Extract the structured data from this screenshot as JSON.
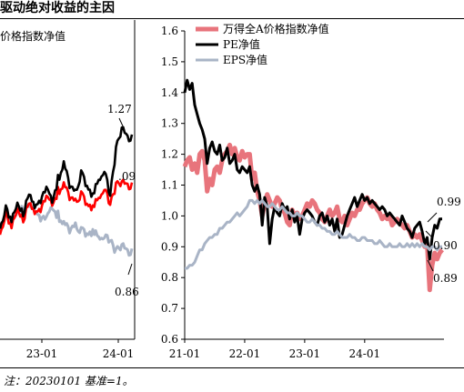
{
  "title": "驱动绝对收益的主因",
  "note": "注：20230101 基准=1。",
  "colors": {
    "total": "#e8747c",
    "pe": "#000000",
    "eps": "#a9b4c6",
    "red": "#ff0000"
  },
  "chart_data": [
    {
      "type": "line",
      "legend": [
        "价格指数净值"
      ],
      "x_tick_labels": [
        "23-01",
        "24-01"
      ],
      "annotations": [
        "1.27",
        ".09",
        "0.86"
      ],
      "series": [
        {
          "name": "",
          "color": "#000000",
          "values": [
            0.95,
            1.0,
            0.97,
            1.02,
            0.98,
            1.05,
            1.0,
            1.03,
            1.08,
            1.02,
            1.1,
            1.15,
            1.08,
            1.05,
            1.12,
            1.08,
            1.04,
            1.1,
            1.12,
            1.05,
            1.2,
            1.27,
            1.24
          ]
        },
        {
          "name": "",
          "color": "#ff0000",
          "values": [
            0.93,
            0.98,
            0.95,
            1.0,
            0.96,
            1.02,
            0.98,
            1.0,
            1.05,
            1.01,
            1.06,
            1.08,
            1.04,
            1.02,
            1.05,
            1.02,
            1.0,
            1.04,
            1.06,
            1.02,
            1.08,
            1.09,
            1.08
          ]
        },
        {
          "name": "",
          "color": "#a9b4c6",
          "values": [
            0.96,
            0.98,
            0.97,
            0.99,
            1.0,
            1.01,
            0.99,
            0.97,
            0.98,
            1.0,
            0.98,
            0.95,
            0.93,
            0.94,
            0.93,
            0.92,
            0.92,
            0.91,
            0.9,
            0.9,
            0.86,
            0.88,
            0.86
          ]
        }
      ]
    },
    {
      "type": "line",
      "ylim": [
        0.6,
        1.6
      ],
      "y_ticks": [
        "0.6",
        "0.7",
        "0.8",
        "0.9",
        "1.0",
        "1.1",
        "1.2",
        "1.3",
        "1.4",
        "1.5",
        "1.6"
      ],
      "x_tick_labels": [
        "21-01",
        "22-01",
        "23-01",
        "24-01"
      ],
      "legend_position": "top-right",
      "annotations": [
        "0.99",
        "0.90",
        "0.89"
      ],
      "series": [
        {
          "name": "万得全A价格指数净值",
          "color": "#e8747c",
          "x": [
            0,
            0.5,
            1,
            1.5,
            2,
            2.5,
            3,
            3.5,
            4,
            4.5,
            5,
            5.5,
            6,
            6.5,
            7,
            7.5,
            8,
            8.5,
            9,
            9.5,
            10,
            10.5,
            11,
            11.5,
            12,
            12.5,
            13,
            13.5,
            14,
            14.5,
            15,
            15.5,
            16,
            16.5,
            17,
            17.5,
            18,
            18.5,
            19,
            19.5,
            20,
            20.5,
            21,
            21.5,
            22,
            22.5,
            23,
            23.5,
            24,
            24.5,
            25,
            25.5,
            26,
            26.5,
            27,
            27.5,
            28,
            28.5,
            29,
            29.5,
            30,
            30.5,
            31,
            31.5,
            32,
            32.5,
            33,
            33.5,
            34,
            34.5,
            35,
            35.5,
            36,
            36.5,
            37,
            37.5,
            38,
            38.5,
            39,
            39.5,
            40,
            40.5,
            41,
            41.5,
            42,
            42.5,
            43,
            43.5,
            44,
            44.5,
            45,
            45.5,
            46,
            46.5,
            47,
            47.5,
            48,
            48.5,
            49,
            49.5,
            50,
            50.5,
            51,
            51.5
          ],
          "values": [
            1.16,
            1.18,
            1.19,
            1.15,
            1.17,
            1.14,
            1.2,
            1.21,
            1.18,
            1.08,
            1.12,
            1.1,
            1.15,
            1.16,
            1.14,
            1.18,
            1.2,
            1.21,
            1.23,
            1.2,
            1.22,
            1.19,
            1.18,
            1.21,
            1.19,
            1.2,
            1.2,
            1.12,
            1.14,
            1.08,
            1.05,
            1.0,
            1.04,
            1.07,
            1.05,
            1.03,
            1.04,
            1.06,
            1.05,
            1.02,
            1.01,
            0.98,
            0.97,
            1.02,
            1.0,
            1.01,
            0.99,
            1.0,
            1.02,
            1.04,
            1.03,
            1.05,
            1.04,
            1.02,
            1.01,
            0.99,
            0.98,
            1.0,
            1.02,
            1.0,
            1.01,
            1.03,
            0.99,
            0.98,
            1.0,
            0.97,
            0.99,
            1.01,
            1.0,
            1.02,
            1.02,
            1.04,
            1.05,
            1.06,
            1.04,
            1.03,
            1.04,
            1.02,
            1.01,
            0.99,
            1.0,
            0.99,
            1.0,
            0.97,
            0.98,
            0.99,
            0.98,
            0.97,
            0.96,
            0.97,
            0.95,
            0.93,
            0.94,
            0.93,
            0.94,
            0.92,
            0.9,
            0.91,
            0.76,
            0.84,
            0.88,
            0.86,
            0.88,
            0.89
          ]
        },
        {
          "name": "PE净值",
          "color": "#000000",
          "x": [
            0,
            0.5,
            1,
            1.5,
            2,
            2.5,
            3,
            3.5,
            4,
            4.5,
            5,
            5.5,
            6,
            6.5,
            7,
            7.5,
            8,
            8.5,
            9,
            9.5,
            10,
            10.5,
            11,
            11.5,
            12,
            12.5,
            13,
            13.5,
            14,
            14.5,
            15,
            15.5,
            16,
            16.5,
            17,
            17.5,
            18,
            18.5,
            19,
            19.5,
            20,
            20.5,
            21,
            21.5,
            22,
            22.5,
            23,
            23.5,
            24,
            24.5,
            25,
            25.5,
            26,
            26.5,
            27,
            27.5,
            28,
            28.5,
            29,
            29.5,
            30,
            30.5,
            31,
            31.5,
            32,
            32.5,
            33,
            33.5,
            34,
            34.5,
            35,
            35.5,
            36,
            36.5,
            37,
            37.5,
            38,
            38.5,
            39,
            39.5,
            40,
            40.5,
            41,
            41.5,
            42,
            42.5,
            43,
            43.5,
            44,
            44.5,
            45,
            45.5,
            46,
            46.5,
            47,
            47.5,
            48,
            48.5,
            49,
            49.5,
            50,
            50.5,
            51,
            51.5
          ],
          "values": [
            1.4,
            1.44,
            1.41,
            1.43,
            1.36,
            1.33,
            1.3,
            1.28,
            1.25,
            1.17,
            1.22,
            1.24,
            1.21,
            1.2,
            1.23,
            1.18,
            1.19,
            1.22,
            1.17,
            1.18,
            1.2,
            1.15,
            1.14,
            1.16,
            1.15,
            1.14,
            1.16,
            1.1,
            1.08,
            1.1,
            1.07,
            0.97,
            1.06,
            1.03,
            0.91,
            0.99,
            1.03,
            1.01,
            1.0,
            1.04,
            1.02,
            1.03,
            0.99,
            1.02,
            0.98,
            1.0,
            0.94,
            0.99,
            1.01,
            1.02,
            1.01,
            1.0,
            0.98,
            0.97,
            1.0,
            1.01,
            0.98,
            1.0,
            0.97,
            0.99,
            0.95,
            0.99,
            0.93,
            0.94,
            0.97,
            1.0,
            1.02,
            1.04,
            1.06,
            1.03,
            1.05,
            1.07,
            1.05,
            1.06,
            1.04,
            1.05,
            1.04,
            1.03,
            1.02,
            1.03,
            1.02,
            1.0,
            1.01,
            1.0,
            0.99,
            0.98,
            0.97,
            1.0,
            0.98,
            0.96,
            0.95,
            0.93,
            0.96,
            0.97,
            0.98,
            0.95,
            0.91,
            0.93,
            0.86,
            0.93,
            0.97,
            0.96,
            0.99,
            0.99
          ]
        },
        {
          "name": "EPS净值",
          "color": "#a9b4c6",
          "x": [
            0,
            0.5,
            1,
            1.5,
            2,
            2.5,
            3,
            3.5,
            4,
            4.5,
            5,
            5.5,
            6,
            6.5,
            7,
            7.5,
            8,
            8.5,
            9,
            9.5,
            10,
            10.5,
            11,
            11.5,
            12,
            12.5,
            13,
            13.5,
            14,
            14.5,
            15,
            15.5,
            16,
            16.5,
            17,
            17.5,
            18,
            18.5,
            19,
            19.5,
            20,
            20.5,
            21,
            21.5,
            22,
            22.5,
            23,
            23.5,
            24,
            24.5,
            25,
            25.5,
            26,
            26.5,
            27,
            27.5,
            28,
            28.5,
            29,
            29.5,
            30,
            30.5,
            31,
            31.5,
            32,
            32.5,
            33,
            33.5,
            34,
            34.5,
            35,
            35.5,
            36,
            36.5,
            37,
            37.5,
            38,
            38.5,
            39,
            39.5,
            40,
            40.5,
            41,
            41.5,
            42,
            42.5,
            43,
            43.5,
            44,
            44.5,
            45,
            45.5,
            46,
            46.5,
            47,
            47.5,
            48,
            48.5,
            49,
            49.5,
            50,
            50.5,
            51,
            51.5
          ],
          "values": [
            0.83,
            0.83,
            0.84,
            0.84,
            0.85,
            0.87,
            0.89,
            0.89,
            0.91,
            0.92,
            0.93,
            0.93,
            0.94,
            0.94,
            0.96,
            0.96,
            0.97,
            0.98,
            0.98,
            0.99,
            1.0,
            1.01,
            1.0,
            1.01,
            1.02,
            1.03,
            1.05,
            1.05,
            1.04,
            1.05,
            1.04,
            1.05,
            1.04,
            1.03,
            1.03,
            1.04,
            1.03,
            1.02,
            1.02,
            1.03,
            1.02,
            1.01,
            1.01,
            1.0,
            1.0,
            1.01,
            1.0,
            1.0,
            0.99,
            0.98,
            0.98,
            0.99,
            0.98,
            0.97,
            0.97,
            0.96,
            0.96,
            0.95,
            0.95,
            0.94,
            0.94,
            0.95,
            0.94,
            0.93,
            0.93,
            0.93,
            0.94,
            0.93,
            0.93,
            0.92,
            0.92,
            0.93,
            0.93,
            0.92,
            0.92,
            0.92,
            0.91,
            0.91,
            0.92,
            0.91,
            0.9,
            0.9,
            0.91,
            0.9,
            0.9,
            0.9,
            0.91,
            0.9,
            0.9,
            0.91,
            0.9,
            0.91,
            0.9,
            0.91,
            0.9,
            0.91,
            0.9,
            0.9,
            0.89,
            0.9,
            0.9,
            0.89,
            0.9,
            0.9
          ]
        }
      ]
    }
  ]
}
